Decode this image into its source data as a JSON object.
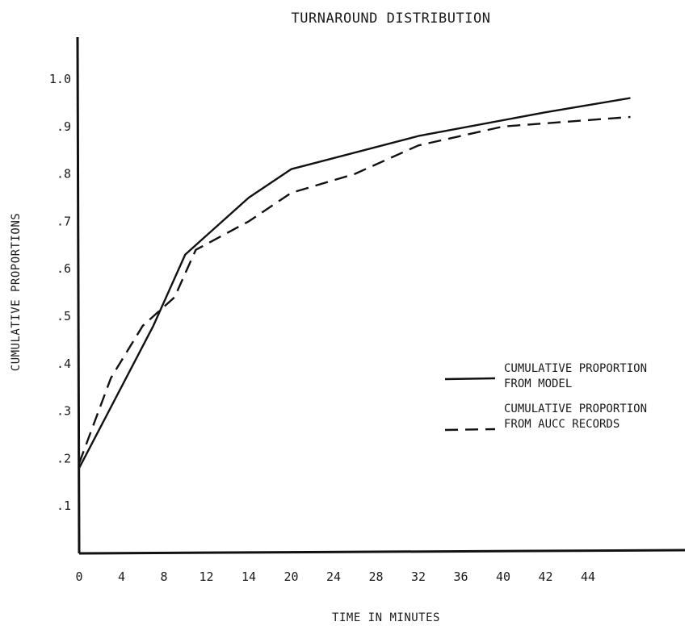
{
  "chart_data": {
    "type": "line",
    "title": "TURNAROUND DISTRIBUTION",
    "xlabel": "TIME IN MINUTES",
    "ylabel": "CUMULATIVE PROPORTIONS",
    "x_tick_labels": [
      "0",
      "4",
      "8",
      "12",
      "14",
      "20",
      "24",
      "28",
      "32",
      "36",
      "40",
      "42",
      "44"
    ],
    "y_tick_labels": [
      ".1",
      ".2",
      ".3",
      ".4",
      ".5",
      ".6",
      ".7",
      ".8",
      ".9",
      "1.0"
    ],
    "y_ticks": [
      0.1,
      0.2,
      0.3,
      0.4,
      0.5,
      0.6,
      0.7,
      0.8,
      0.9,
      1.0
    ],
    "ylim": [
      0,
      1.05
    ],
    "grid": false,
    "legend_position": "right",
    "series": [
      {
        "name": "CUMULATIVE PROPORTION FROM MODEL",
        "legend_lines": [
          "CUMULATIVE PROPORTION",
          "FROM MODEL"
        ],
        "style": "solid",
        "x": [
          0,
          7,
          10,
          14,
          20,
          32,
          42,
          46
        ],
        "y": [
          0.18,
          0.48,
          0.63,
          0.75,
          0.81,
          0.88,
          0.93,
          0.96
        ]
      },
      {
        "name": "CUMULATIVE PROPORTION FROM AUCC RECORDS",
        "legend_lines": [
          "CUMULATIVE PROPORTION",
          "FROM AUCC RECORDS"
        ],
        "style": "dashed",
        "x": [
          0,
          3,
          6,
          9,
          11,
          14,
          20,
          26,
          32,
          40,
          46
        ],
        "y": [
          0.19,
          0.37,
          0.48,
          0.54,
          0.64,
          0.7,
          0.76,
          0.8,
          0.86,
          0.9,
          0.92
        ]
      }
    ]
  }
}
